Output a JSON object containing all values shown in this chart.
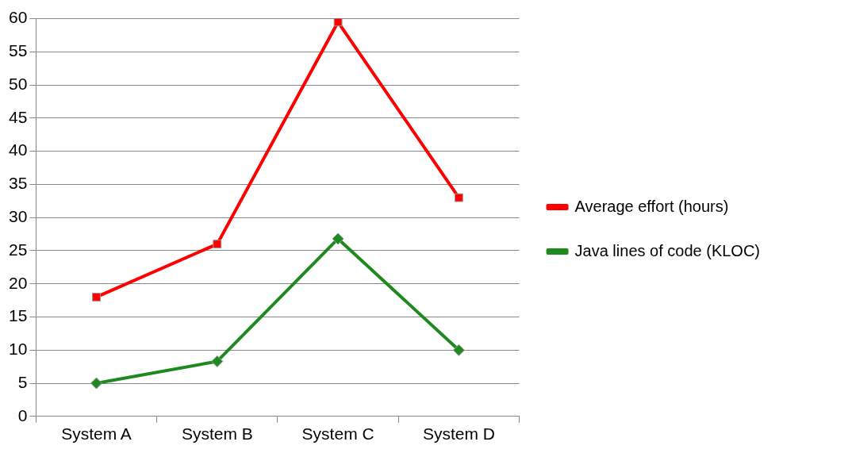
{
  "chart_data": {
    "type": "line",
    "categories": [
      "System A",
      "System B",
      "System C",
      "System D"
    ],
    "series": [
      {
        "name": "Average effort (hours)",
        "color": "#ff0000",
        "marker": "square",
        "values": [
          18,
          26,
          59.5,
          33
        ]
      },
      {
        "name": "Java lines of code (KLOC)",
        "color": "#1e8a1e",
        "marker": "diamond",
        "values": [
          5,
          8.3,
          26.8,
          10
        ]
      }
    ],
    "ylim": [
      0,
      60
    ],
    "yticks": [
      0,
      5,
      10,
      15,
      20,
      25,
      30,
      35,
      40,
      45,
      50,
      55,
      60
    ],
    "grid": "y",
    "legend": "right",
    "line_style": "solid"
  }
}
